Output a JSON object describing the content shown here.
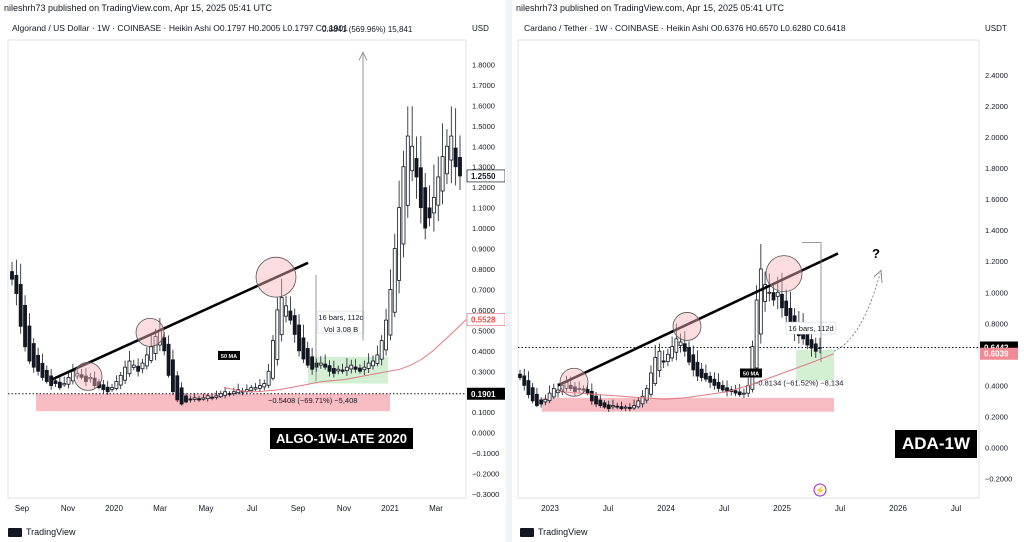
{
  "left": {
    "published_by": "nileshrh73 published on TradingView.com, Apr 15, 2025 05:41 UTC",
    "symbol_line": "Algorand / US Dollar · 1W · COINBASE · Heikin Ashi  O0.1797  H0.2005  L0.1797  C0.1901",
    "measure_text": "0.8841 (569.96%) 15,841",
    "currency": "USD",
    "tradingview": "TradingView",
    "label": "ALGO-1W-LATE 2020",
    "bars_box": "16 bars, 112d",
    "vol_box": "Vol 3.08 B",
    "ma_label": "50 MA",
    "support_text": "−0.5408 (−69.71%) −5,408",
    "price_tag_last": "1.2550",
    "price_tag_ma": "0.5528",
    "price_tag_close": "0.1901",
    "accent_colors": {
      "support": "#f7b1b8",
      "accumulation": "#cfeecf",
      "ma": "#e07a83",
      "close_tag": "#000000"
    }
  },
  "right": {
    "published_by": "nileshrh73 published on TradingView.com, Apr 15, 2025 05:41 UTC",
    "symbol_line": "Cardano / Tether · 1W · COINBASE · Heikin Ashi  O0.6376  H0.6570  L0.6280  C0.6418",
    "currency": "USDT",
    "tradingview": "TradingView",
    "label": "ADA-1W",
    "bars_box": "16 bars, 112d",
    "ma_label": "50 MA",
    "support_text": "−0.8134 (−61.52%) −8,134",
    "question": "?",
    "price_tag_last": "0.6442",
    "price_tag_ma": "0.6039",
    "accent_colors": {
      "support": "#f7b1b8",
      "accumulation": "#cfeecf",
      "ma": "#e07a83",
      "last_tag": "#000000",
      "ma_tag": "#f08a95"
    }
  },
  "chart_data": [
    {
      "type": "candlestick",
      "title": "Algorand / US Dollar · 1W · COINBASE · Heikin Ashi",
      "ylabel": "USD",
      "ylim": [
        -0.3,
        1.9
      ],
      "yticks": [
        "1.8000",
        "1.7000",
        "1.6000",
        "1.5000",
        "1.4000",
        "1.3000",
        "1.2000",
        "1.1000",
        "1.0000",
        "0.9000",
        "0.8000",
        "0.7000",
        "0.6000",
        "0.5000",
        "0.4000",
        "0.3000",
        "0.2000",
        "0.1000",
        "0.0000",
        "−0.1000",
        "−0.2000",
        "−0.3000"
      ],
      "xticks": [
        "Sep",
        "Nov",
        "2020",
        "Mar",
        "May",
        "Jul",
        "Sep",
        "Nov",
        "2021",
        "Mar"
      ],
      "close_series": [
        0.75,
        0.68,
        0.52,
        0.42,
        0.35,
        0.32,
        0.3,
        0.27,
        0.25,
        0.23,
        0.24,
        0.22,
        0.24,
        0.27,
        0.3,
        0.29,
        0.27,
        0.25,
        0.27,
        0.23,
        0.22,
        0.21,
        0.2,
        0.22,
        0.25,
        0.28,
        0.32,
        0.35,
        0.33,
        0.3,
        0.34,
        0.38,
        0.42,
        0.47,
        0.5,
        0.4,
        0.28,
        0.2,
        0.16,
        0.14,
        0.15,
        0.16,
        0.17,
        0.16,
        0.17,
        0.18,
        0.17,
        0.18,
        0.19,
        0.2,
        0.19,
        0.2,
        0.21,
        0.2,
        0.21,
        0.22,
        0.22,
        0.23,
        0.24,
        0.3,
        0.45,
        0.6,
        0.66,
        0.62,
        0.55,
        0.48,
        0.4,
        0.36,
        0.33,
        0.31,
        0.32,
        0.34,
        0.32,
        0.3,
        0.29,
        0.31,
        0.3,
        0.32,
        0.33,
        0.31,
        0.3,
        0.32,
        0.34,
        0.35,
        0.38,
        0.45,
        0.55,
        0.7,
        0.9,
        1.1,
        1.3,
        1.45,
        1.4,
        1.25,
        1.1,
        1.0,
        1.05,
        1.15,
        1.25,
        1.35,
        1.4,
        1.45,
        1.3,
        1.255
      ],
      "ma50": [
        0.22,
        0.21,
        0.2,
        0.2,
        0.205,
        0.21,
        0.22,
        0.23,
        0.24,
        0.25,
        0.255,
        0.26,
        0.27,
        0.28,
        0.29,
        0.3,
        0.31,
        0.33,
        0.36,
        0.4,
        0.45,
        0.5,
        0.5528
      ],
      "annotations": {
        "trendline": "rising trendline",
        "bars_box": "16 bars, 112d",
        "vol": "Vol 3.08 B",
        "support_change": "−0.5408 (−69.71%) −5,408",
        "measure": "0.8841 (569.96%) 15,841",
        "last_price": 1.255,
        "ma_price": 0.5528,
        "close_price": 0.1901
      }
    },
    {
      "type": "candlestick",
      "title": "Cardano / Tether · 1W · COINBASE · Heikin Ashi",
      "ylabel": "USDT",
      "ylim": [
        -0.3,
        2.6
      ],
      "yticks": [
        "2.4000",
        "2.2000",
        "2.0000",
        "1.8000",
        "1.6000",
        "1.4000",
        "1.2000",
        "1.0000",
        "0.8000",
        "0.6000",
        "0.4000",
        "0.2000",
        "0.0000",
        "−0.2000"
      ],
      "xticks": [
        "2023",
        "Jul",
        "2024",
        "Jul",
        "2025",
        "Jul",
        "2026",
        "Jul"
      ],
      "close_series": [
        0.45,
        0.4,
        0.34,
        0.3,
        0.27,
        0.28,
        0.31,
        0.35,
        0.38,
        0.37,
        0.4,
        0.42,
        0.38,
        0.36,
        0.38,
        0.37,
        0.35,
        0.3,
        0.28,
        0.27,
        0.26,
        0.25,
        0.27,
        0.26,
        0.25,
        0.26,
        0.25,
        0.27,
        0.3,
        0.33,
        0.38,
        0.48,
        0.58,
        0.62,
        0.55,
        0.6,
        0.65,
        0.7,
        0.68,
        0.62,
        0.55,
        0.5,
        0.46,
        0.45,
        0.44,
        0.42,
        0.4,
        0.38,
        0.37,
        0.36,
        0.36,
        0.35,
        0.34,
        0.35,
        0.4,
        0.65,
        0.95,
        1.15,
        1.05,
        1.0,
        0.95,
        1.0,
        0.9,
        0.85,
        0.8,
        0.75,
        0.72,
        0.7,
        0.66,
        0.64,
        0.62,
        0.6418
      ],
      "ma50": [
        0.36,
        0.35,
        0.34,
        0.33,
        0.32,
        0.31,
        0.32,
        0.34,
        0.36,
        0.4,
        0.45,
        0.5,
        0.55,
        0.6039
      ],
      "annotations": {
        "trendline": "rising trendline",
        "bars_box": "16 bars, 112d",
        "support_change": "−0.8134 (−61.52%) −8,134",
        "question": "?",
        "last_price": 0.6442,
        "ma_price": 0.6039
      }
    }
  ]
}
